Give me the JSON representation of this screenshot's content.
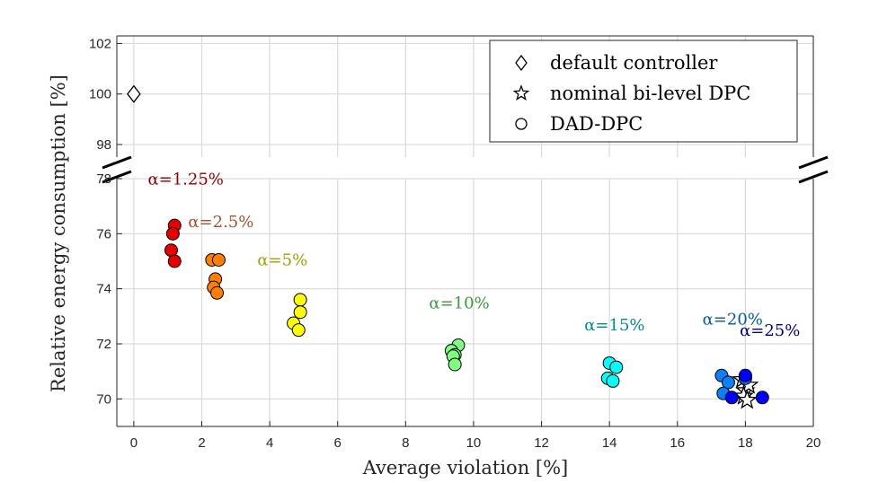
{
  "chart_data": {
    "type": "scatter",
    "xlabel": "Average violation [%]",
    "ylabel": "Relative energy consumption [%]",
    "xlim": [
      -0.5,
      20
    ],
    "ylim_lower": [
      69,
      78
    ],
    "ylim_upper": [
      97.5,
      102.3
    ],
    "broken_y_axis": true,
    "grid": true,
    "x_ticks": [
      "0",
      "2",
      "4",
      "6",
      "8",
      "10",
      "12",
      "14",
      "16",
      "18",
      "20"
    ],
    "y_ticks_lower": [
      "70",
      "72",
      "74",
      "76",
      "78"
    ],
    "y_ticks_upper": [
      "98",
      "100",
      "102"
    ],
    "legend": {
      "position": "top-right",
      "entries": [
        {
          "marker": "diamond",
          "label": "default controller"
        },
        {
          "marker": "star",
          "label": "nominal bi-level DPC"
        },
        {
          "marker": "circle",
          "label": "DAD-DPC"
        }
      ]
    },
    "series": [
      {
        "name": "default controller",
        "marker": "diamond",
        "color": "#ffffff",
        "points": [
          [
            0.0,
            100.0
          ]
        ]
      },
      {
        "name": "nominal bi-level DPC",
        "marker": "star",
        "color": "#ffffff",
        "points": [
          [
            17.9,
            70.7
          ],
          [
            18.0,
            70.3
          ],
          [
            18.1,
            70.5
          ],
          [
            17.95,
            70.1
          ],
          [
            18.05,
            69.95
          ]
        ]
      },
      {
        "name": "α=1.25%",
        "label": "α=1.25%",
        "color": "#e60000",
        "label_color": "#8b0000",
        "points": [
          [
            1.2,
            76.3
          ],
          [
            1.15,
            76.0
          ],
          [
            1.1,
            75.4
          ],
          [
            1.2,
            75.0
          ]
        ]
      },
      {
        "name": "α=2.5%",
        "label": "α=2.5%",
        "color": "#ff8000",
        "label_color": "#a0522d",
        "points": [
          [
            2.3,
            75.05
          ],
          [
            2.5,
            75.05
          ],
          [
            2.4,
            74.35
          ],
          [
            2.35,
            74.05
          ],
          [
            2.45,
            73.85
          ]
        ]
      },
      {
        "name": "α=5%",
        "label": "α=5%",
        "color": "#ffff00",
        "label_color": "#a0a000",
        "points": [
          [
            4.9,
            73.6
          ],
          [
            4.9,
            73.15
          ],
          [
            4.7,
            72.75
          ],
          [
            4.85,
            72.5
          ]
        ]
      },
      {
        "name": "α=10%",
        "label": "α=10%",
        "color": "#80ff80",
        "label_color": "#3c9a3c",
        "points": [
          [
            9.55,
            71.95
          ],
          [
            9.35,
            71.75
          ],
          [
            9.45,
            71.6
          ],
          [
            9.4,
            71.55
          ],
          [
            9.45,
            71.25
          ]
        ]
      },
      {
        "name": "α=15%",
        "label": "α=15%",
        "color": "#00ffff",
        "label_color": "#008b8b",
        "points": [
          [
            14.0,
            71.3
          ],
          [
            14.2,
            71.15
          ],
          [
            13.95,
            70.75
          ],
          [
            14.1,
            70.65
          ]
        ]
      },
      {
        "name": "α=20%",
        "label": "α=20%",
        "color": "#0a80ff",
        "label_color": "#005a9c",
        "points": [
          [
            17.3,
            70.85
          ],
          [
            17.5,
            70.6
          ],
          [
            18.0,
            70.75
          ],
          [
            17.35,
            70.2
          ]
        ]
      },
      {
        "name": "α=25%",
        "label": "α=25%",
        "color": "#0000ff",
        "label_color": "#00008b",
        "points": [
          [
            18.0,
            70.85
          ],
          [
            17.6,
            70.05
          ],
          [
            18.5,
            70.05
          ]
        ]
      }
    ]
  }
}
